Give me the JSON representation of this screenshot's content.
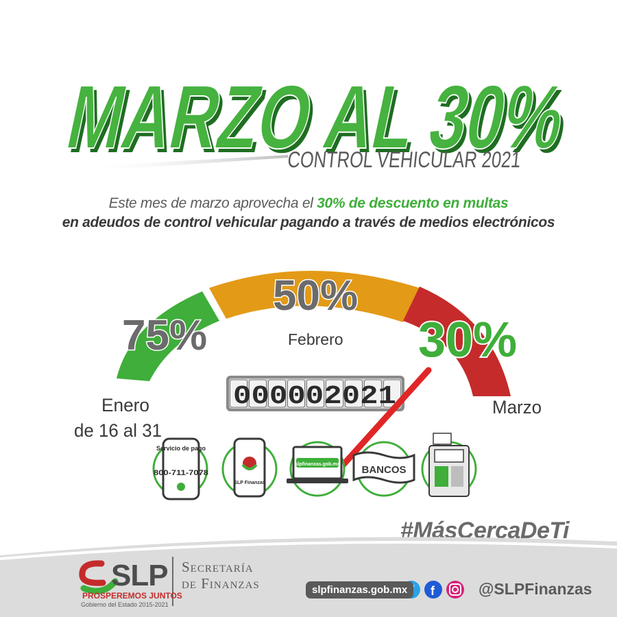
{
  "header": {
    "title": "MARZO AL 30%",
    "subtitle": "CONTROL VEHICULAR 2021"
  },
  "intro": {
    "line1_pre": "Este mes de marzo aprovecha el ",
    "line1_highlight": "30% de descuento en multas",
    "line2": "en adeudos de control vehicular pagando a través de medios electrónicos"
  },
  "gauge": {
    "segments": [
      {
        "percent": "75%",
        "label_line1": "Enero",
        "label_line2": "de 16 al 31",
        "color": "#3fae3a"
      },
      {
        "percent": "50%",
        "label_line1": "Febrero",
        "label_line2": "",
        "color": "#e39a17"
      },
      {
        "percent": "30%",
        "label_line1": "Marzo",
        "label_line2": "",
        "color": "#c52b2b"
      }
    ],
    "odometer": "000002021",
    "needle_color": "#e02626"
  },
  "payment_methods": [
    {
      "name": "phone-service",
      "title": "Servicio de pago",
      "phone": "800-711-7078"
    },
    {
      "name": "mobile-app",
      "label": "SLP Finanzas"
    },
    {
      "name": "website",
      "label": "slpfinanzas.gob.mx"
    },
    {
      "name": "banks",
      "label": "BANCOS"
    },
    {
      "name": "kiosk",
      "label": ""
    }
  ],
  "hashtag": "#MásCercaDeTi",
  "footer": {
    "logo": "SLP",
    "slogan": "PROSPEREMOS JUNTOS",
    "government": "Gobierno del Estado 2015-2021",
    "department_line1": "Secretaría",
    "department_line2": "de Finanzas",
    "website": "slpfinanzas.gob.mx",
    "handle": "@SLPFinanzas"
  },
  "colors": {
    "green": "#3fae3a",
    "orange": "#e39a17",
    "red": "#c52b2b",
    "gray": "#5a5a5a"
  }
}
